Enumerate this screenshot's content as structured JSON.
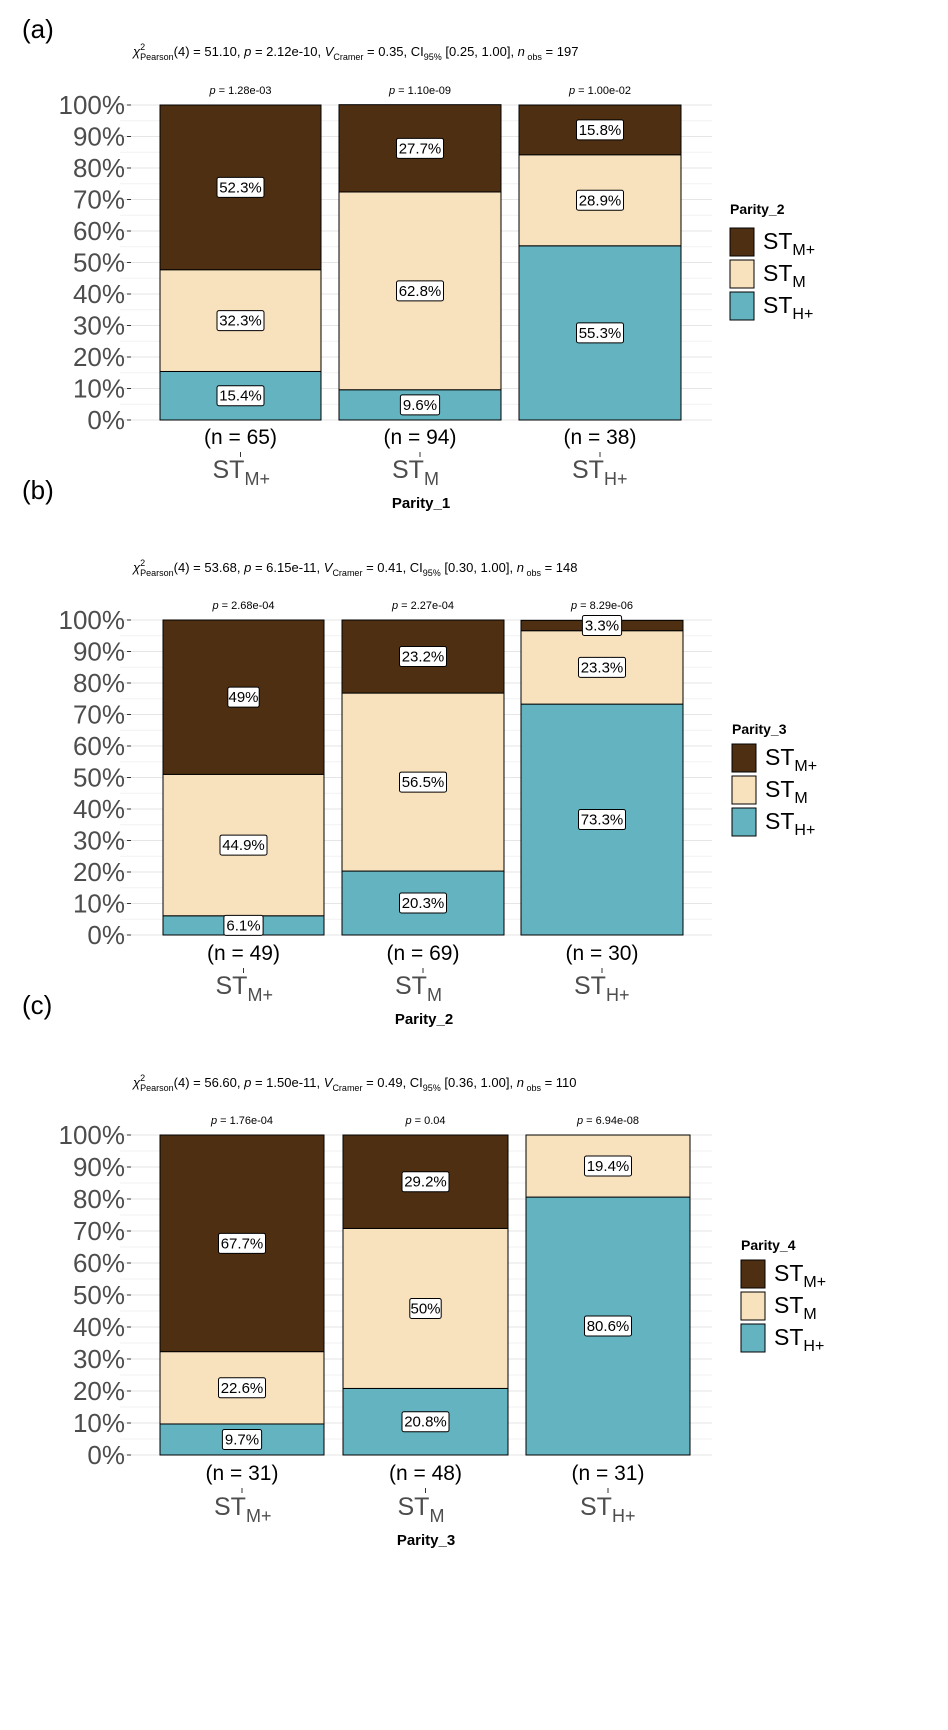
{
  "panels": [
    {
      "letter": "(a)",
      "stats": {
        "df": "(4)",
        "chi": "51.10",
        "p": "2.12e-10",
        "v": "0.35",
        "ci": "[0.25, 1.00]",
        "nobs": "197"
      },
      "legend_title": "Parity_2",
      "xlabel": "Parity_1"
    },
    {
      "letter": "(b)",
      "stats": {
        "df": "(4)",
        "chi": "53.68",
        "p": "6.15e-11",
        "v": "0.41",
        "ci": "[0.30, 1.00]",
        "nobs": "148"
      },
      "legend_title": "Parity_3",
      "xlabel": "Parity_2"
    },
    {
      "letter": "(c)",
      "stats": {
        "df": "(4)",
        "chi": "56.60",
        "p": "1.50e-11",
        "v": "0.49",
        "ci": "[0.36, 1.00]",
        "nobs": "110"
      },
      "legend_title": "Parity_4",
      "xlabel": "Parity_3"
    }
  ],
  "stat_text": {
    "chi_symbol": "χ",
    "chi_sup": "2",
    "chi_sub": "Pearson",
    "p_label": "p",
    "v_symbol": "V",
    "v_sub": "Cramer",
    "ci_label": "CI",
    "ci_sub": "95%",
    "n_label": "n",
    "n_sub": "obs"
  },
  "legend_entries": [
    {
      "base": "ST",
      "sub": "M+",
      "color": "#4e2f12"
    },
    {
      "base": "ST",
      "sub": "M",
      "color": "#f8e1bd"
    },
    {
      "base": "ST",
      "sub": "H+",
      "color": "#63b3c1"
    }
  ],
  "chart_data": [
    {
      "type": "bar",
      "stacked": true,
      "percent": true,
      "title": "",
      "xlabel": "Parity_1",
      "ylabel": "",
      "ylim": [
        0,
        100
      ],
      "yticks": [
        "0%",
        "10%",
        "20%",
        "30%",
        "40%",
        "50%",
        "60%",
        "70%",
        "80%",
        "90%",
        "100%"
      ],
      "categories": [
        {
          "base": "ST",
          "sub": "M+",
          "n_label": "(n = 65)",
          "p_value": "1.28e-03"
        },
        {
          "base": "ST",
          "sub": "M",
          "n_label": "(n = 94)",
          "p_value": "1.10e-09"
        },
        {
          "base": "ST",
          "sub": "H+",
          "n_label": "(n = 38)",
          "p_value": "1.00e-02"
        }
      ],
      "series": [
        {
          "name": "ST_H+",
          "color": "#63b3c1",
          "values": [
            15.4,
            9.6,
            55.3
          ],
          "labels": [
            "15.4%",
            "9.6%",
            "55.3%"
          ]
        },
        {
          "name": "ST_M",
          "color": "#f8e1bd",
          "values": [
            32.3,
            62.8,
            28.9
          ],
          "labels": [
            "32.3%",
            "62.8%",
            "28.9%"
          ]
        },
        {
          "name": "ST_M+",
          "color": "#4e2f12",
          "values": [
            52.3,
            27.7,
            15.8
          ],
          "labels": [
            "52.3%",
            "27.7%",
            "15.8%"
          ]
        }
      ],
      "legend": "right",
      "grid": true
    },
    {
      "type": "bar",
      "stacked": true,
      "percent": true,
      "title": "",
      "xlabel": "Parity_2",
      "ylabel": "",
      "ylim": [
        0,
        100
      ],
      "yticks": [
        "0%",
        "10%",
        "20%",
        "30%",
        "40%",
        "50%",
        "60%",
        "70%",
        "80%",
        "90%",
        "100%"
      ],
      "categories": [
        {
          "base": "ST",
          "sub": "M+",
          "n_label": "(n = 49)",
          "p_value": "2.68e-04"
        },
        {
          "base": "ST",
          "sub": "M",
          "n_label": "(n = 69)",
          "p_value": "2.27e-04"
        },
        {
          "base": "ST",
          "sub": "H+",
          "n_label": "(n = 30)",
          "p_value": "8.29e-06"
        }
      ],
      "series": [
        {
          "name": "ST_H+",
          "color": "#63b3c1",
          "values": [
            6.1,
            20.3,
            73.3
          ],
          "labels": [
            "6.1%",
            "20.3%",
            "73.3%"
          ]
        },
        {
          "name": "ST_M",
          "color": "#f8e1bd",
          "values": [
            44.9,
            56.5,
            23.3
          ],
          "labels": [
            "44.9%",
            "56.5%",
            "23.3%"
          ]
        },
        {
          "name": "ST_M+",
          "color": "#4e2f12",
          "values": [
            49,
            23.2,
            3.3
          ],
          "labels": [
            "49%",
            "23.2%",
            "3.3%"
          ]
        }
      ],
      "legend": "right",
      "grid": true
    },
    {
      "type": "bar",
      "stacked": true,
      "percent": true,
      "title": "",
      "xlabel": "Parity_3",
      "ylabel": "",
      "ylim": [
        0,
        100
      ],
      "yticks": [
        "0%",
        "10%",
        "20%",
        "30%",
        "40%",
        "50%",
        "60%",
        "70%",
        "80%",
        "90%",
        "100%"
      ],
      "categories": [
        {
          "base": "ST",
          "sub": "M+",
          "n_label": "(n = 31)",
          "p_value": "1.76e-04"
        },
        {
          "base": "ST",
          "sub": "M",
          "n_label": "(n = 48)",
          "p_value": "0.04"
        },
        {
          "base": "ST",
          "sub": "H+",
          "n_label": "(n = 31)",
          "p_value": "6.94e-08"
        }
      ],
      "series": [
        {
          "name": "ST_H+",
          "color": "#63b3c1",
          "values": [
            9.7,
            20.8,
            80.6
          ],
          "labels": [
            "9.7%",
            "20.8%",
            "80.6%"
          ]
        },
        {
          "name": "ST_M",
          "color": "#f8e1bd",
          "values": [
            22.6,
            50,
            19.4
          ],
          "labels": [
            "22.6%",
            "50%",
            "19.4%"
          ]
        },
        {
          "name": "ST_M+",
          "color": "#4e2f12",
          "values": [
            67.7,
            29.2,
            0
          ],
          "labels": [
            "67.7%",
            "29.2%",
            ""
          ]
        }
      ],
      "legend": "right",
      "grid": true
    }
  ]
}
